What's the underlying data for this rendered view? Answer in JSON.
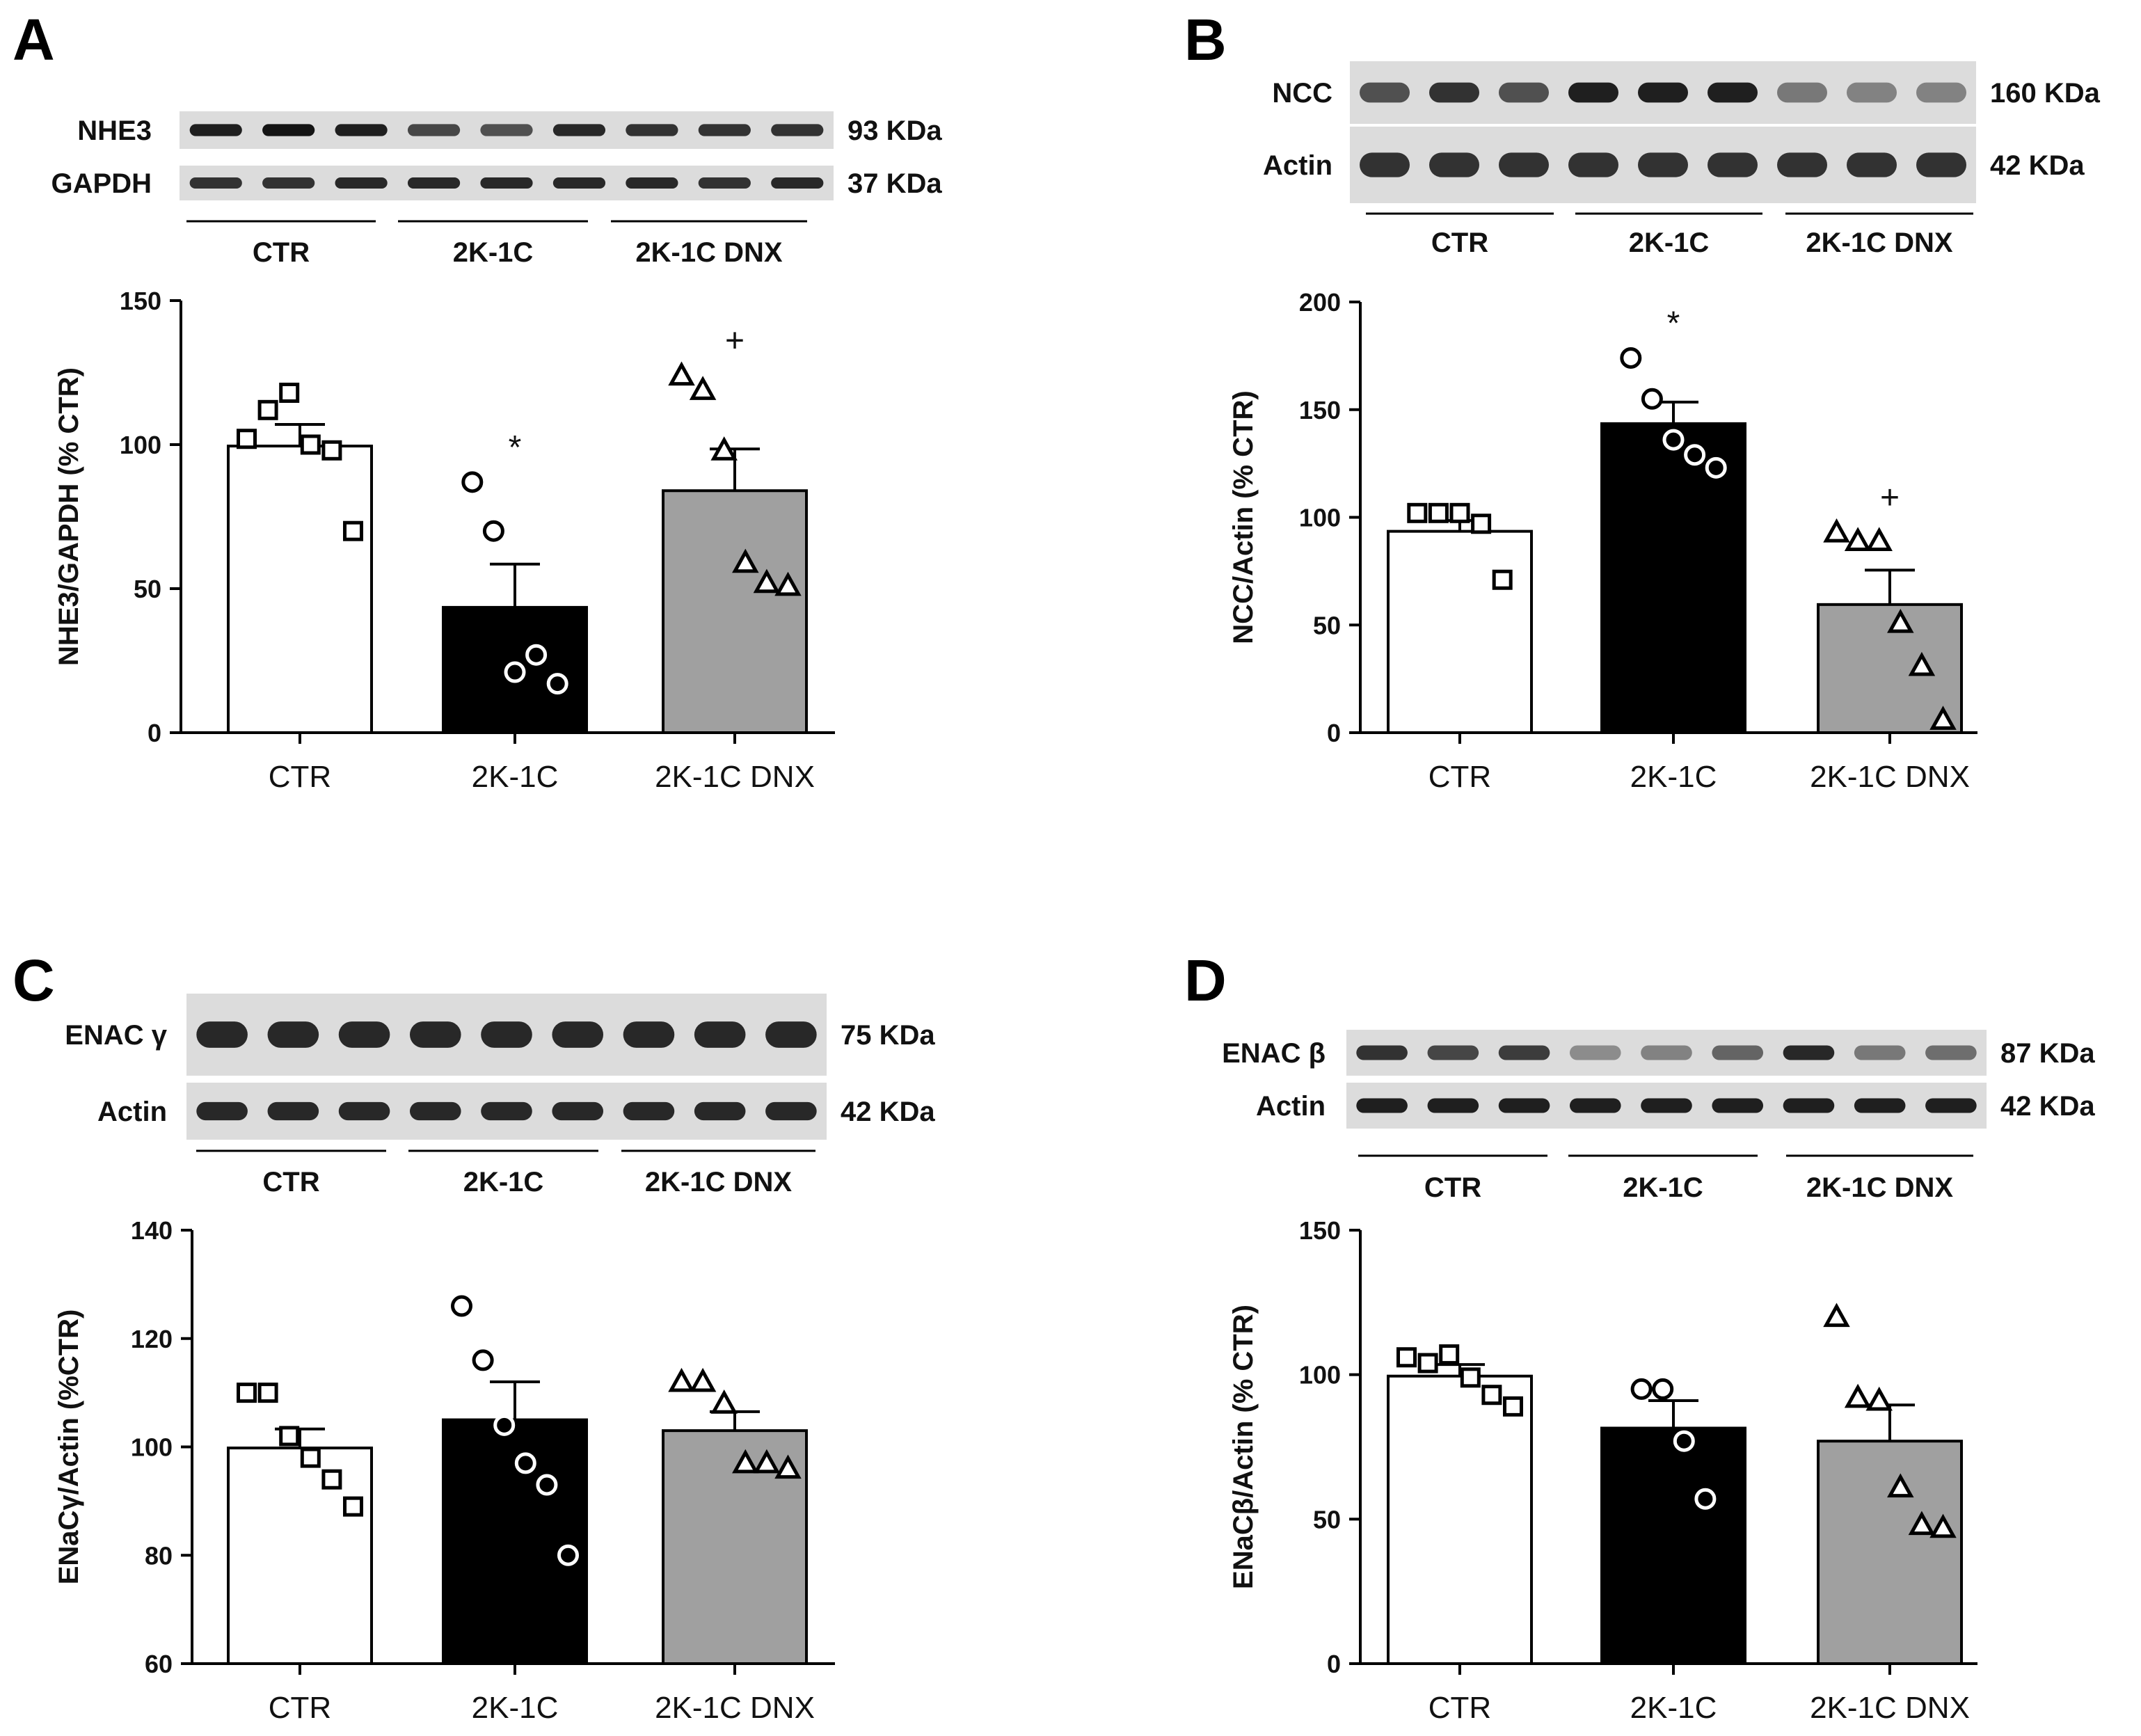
{
  "colors": {
    "ctr_bar": "#ffffff",
    "k2c_bar": "#000000",
    "dnx_bar": "#a0a0a0",
    "axis": "#000000",
    "blot_bg": "#dcdcdc",
    "band": "#141414"
  },
  "chart_data": [
    {
      "panel": "A",
      "type": "bar",
      "title": "",
      "xlabel": "",
      "ylabel": "NHE3/GAPDH (% CTR)",
      "ylim": [
        0,
        150
      ],
      "yticks": [
        0,
        50,
        100,
        150
      ],
      "categories": [
        "CTR",
        "2K-1C",
        "2K-1C DNX"
      ],
      "values": [
        99.5,
        43.5,
        84
      ],
      "sem": [
        7.5,
        15,
        14.5
      ],
      "points": [
        [
          102,
          112,
          118,
          100,
          98,
          70
        ],
        [
          87,
          70,
          21,
          27,
          17
        ],
        [
          124,
          119,
          98,
          59,
          52,
          51
        ]
      ],
      "markers": [
        "square",
        "circle",
        "triangle"
      ],
      "significance": [
        "",
        "*",
        "+"
      ],
      "blot": {
        "rows": [
          {
            "protein": "NHE3",
            "kda": "93 KDa",
            "intensity": [
              0.95,
              1.0,
              0.95,
              0.75,
              0.7,
              0.9,
              0.85,
              0.85,
              0.85
            ]
          },
          {
            "protein": "GAPDH",
            "kda": "37 KDa",
            "intensity": [
              0.85,
              0.85,
              0.9,
              0.9,
              0.9,
              0.9,
              0.9,
              0.85,
              0.9
            ]
          }
        ],
        "groups": [
          "CTR",
          "2K-1C",
          "2K-1C DNX"
        ]
      }
    },
    {
      "panel": "B",
      "type": "bar",
      "title": "",
      "xlabel": "",
      "ylabel": "NCC/Actin (% CTR)",
      "ylim": [
        0,
        200
      ],
      "yticks": [
        0,
        50,
        100,
        150,
        200
      ],
      "categories": [
        "CTR",
        "2K-1C",
        "2K-1C DNX"
      ],
      "values": [
        93.5,
        143.5,
        59.5
      ],
      "sem": [
        5,
        10,
        16
      ],
      "points": [
        [
          102,
          102,
          102,
          97,
          71
        ],
        [
          174,
          155,
          136,
          129,
          123
        ],
        [
          93,
          89,
          89,
          51,
          31,
          6
        ]
      ],
      "markers": [
        "square",
        "circle",
        "triangle"
      ],
      "significance": [
        "",
        "*",
        "+"
      ],
      "blot": {
        "rows": [
          {
            "protein": "NCC",
            "kda": "160 KDa",
            "intensity": [
              0.7,
              0.85,
              0.7,
              0.95,
              0.95,
              0.95,
              0.5,
              0.45,
              0.45
            ]
          },
          {
            "protein": "Actin",
            "kda": "42 KDa",
            "intensity": [
              0.85,
              0.85,
              0.85,
              0.85,
              0.85,
              0.85,
              0.85,
              0.85,
              0.85
            ]
          }
        ],
        "groups": [
          "CTR",
          "2K-1C",
          "2K-1C DNX"
        ]
      }
    },
    {
      "panel": "C",
      "type": "bar",
      "title": "",
      "xlabel": "",
      "ylabel": "ENaCγ/Actin (%CTR)",
      "ylim": [
        60,
        140
      ],
      "yticks": [
        60,
        80,
        100,
        120,
        140
      ],
      "categories": [
        "CTR",
        "2K-1C",
        "2K-1C DNX"
      ],
      "values": [
        99.8,
        105,
        103
      ],
      "sem": [
        3.5,
        7,
        3.5
      ],
      "points": [
        [
          110,
          110,
          102,
          98,
          94,
          89
        ],
        [
          126,
          116,
          104,
          97,
          93,
          80
        ],
        [
          112,
          112,
          108,
          97,
          97,
          96
        ]
      ],
      "markers": [
        "square",
        "circle",
        "triangle"
      ],
      "significance": [
        "",
        "",
        ""
      ],
      "blot": {
        "rows": [
          {
            "protein": "ENAC γ",
            "kda": "75 KDa",
            "intensity": [
              0.9,
              0.9,
              0.9,
              0.9,
              0.9,
              0.9,
              0.9,
              0.9,
              0.9
            ]
          },
          {
            "protein": "Actin",
            "kda": "42 KDa",
            "intensity": [
              0.9,
              0.9,
              0.9,
              0.9,
              0.9,
              0.9,
              0.9,
              0.9,
              0.9
            ]
          }
        ],
        "groups": [
          "CTR",
          "2K-1C",
          "2K-1C DNX"
        ]
      }
    },
    {
      "panel": "D",
      "type": "bar",
      "title": "",
      "xlabel": "",
      "ylabel": "ENaCβ/Actin (% CTR)",
      "ylim": [
        0,
        150
      ],
      "yticks": [
        0,
        50,
        100,
        150
      ],
      "categories": [
        "CTR",
        "2K-1C",
        "2K-1C DNX"
      ],
      "values": [
        99.5,
        81.5,
        77
      ],
      "sem": [
        4,
        9.5,
        12.5
      ],
      "points": [
        [
          106,
          104,
          107,
          99,
          93,
          89
        ],
        [
          95,
          95,
          77,
          57
        ],
        [
          120,
          92,
          91,
          61,
          48,
          47
        ]
      ],
      "markers": [
        "square",
        "circle",
        "triangle"
      ],
      "significance": [
        "",
        "",
        ""
      ],
      "blot": {
        "rows": [
          {
            "protein": "ENAC β",
            "kda": "87 KDa",
            "intensity": [
              0.85,
              0.75,
              0.8,
              0.4,
              0.45,
              0.6,
              0.9,
              0.5,
              0.55
            ]
          },
          {
            "protein": "Actin",
            "kda": "42 KDa",
            "intensity": [
              0.95,
              0.95,
              0.95,
              0.95,
              0.95,
              0.95,
              0.95,
              0.95,
              0.95
            ]
          }
        ],
        "groups": [
          "CTR",
          "2K-1C",
          "2K-1C DNX"
        ]
      }
    }
  ]
}
